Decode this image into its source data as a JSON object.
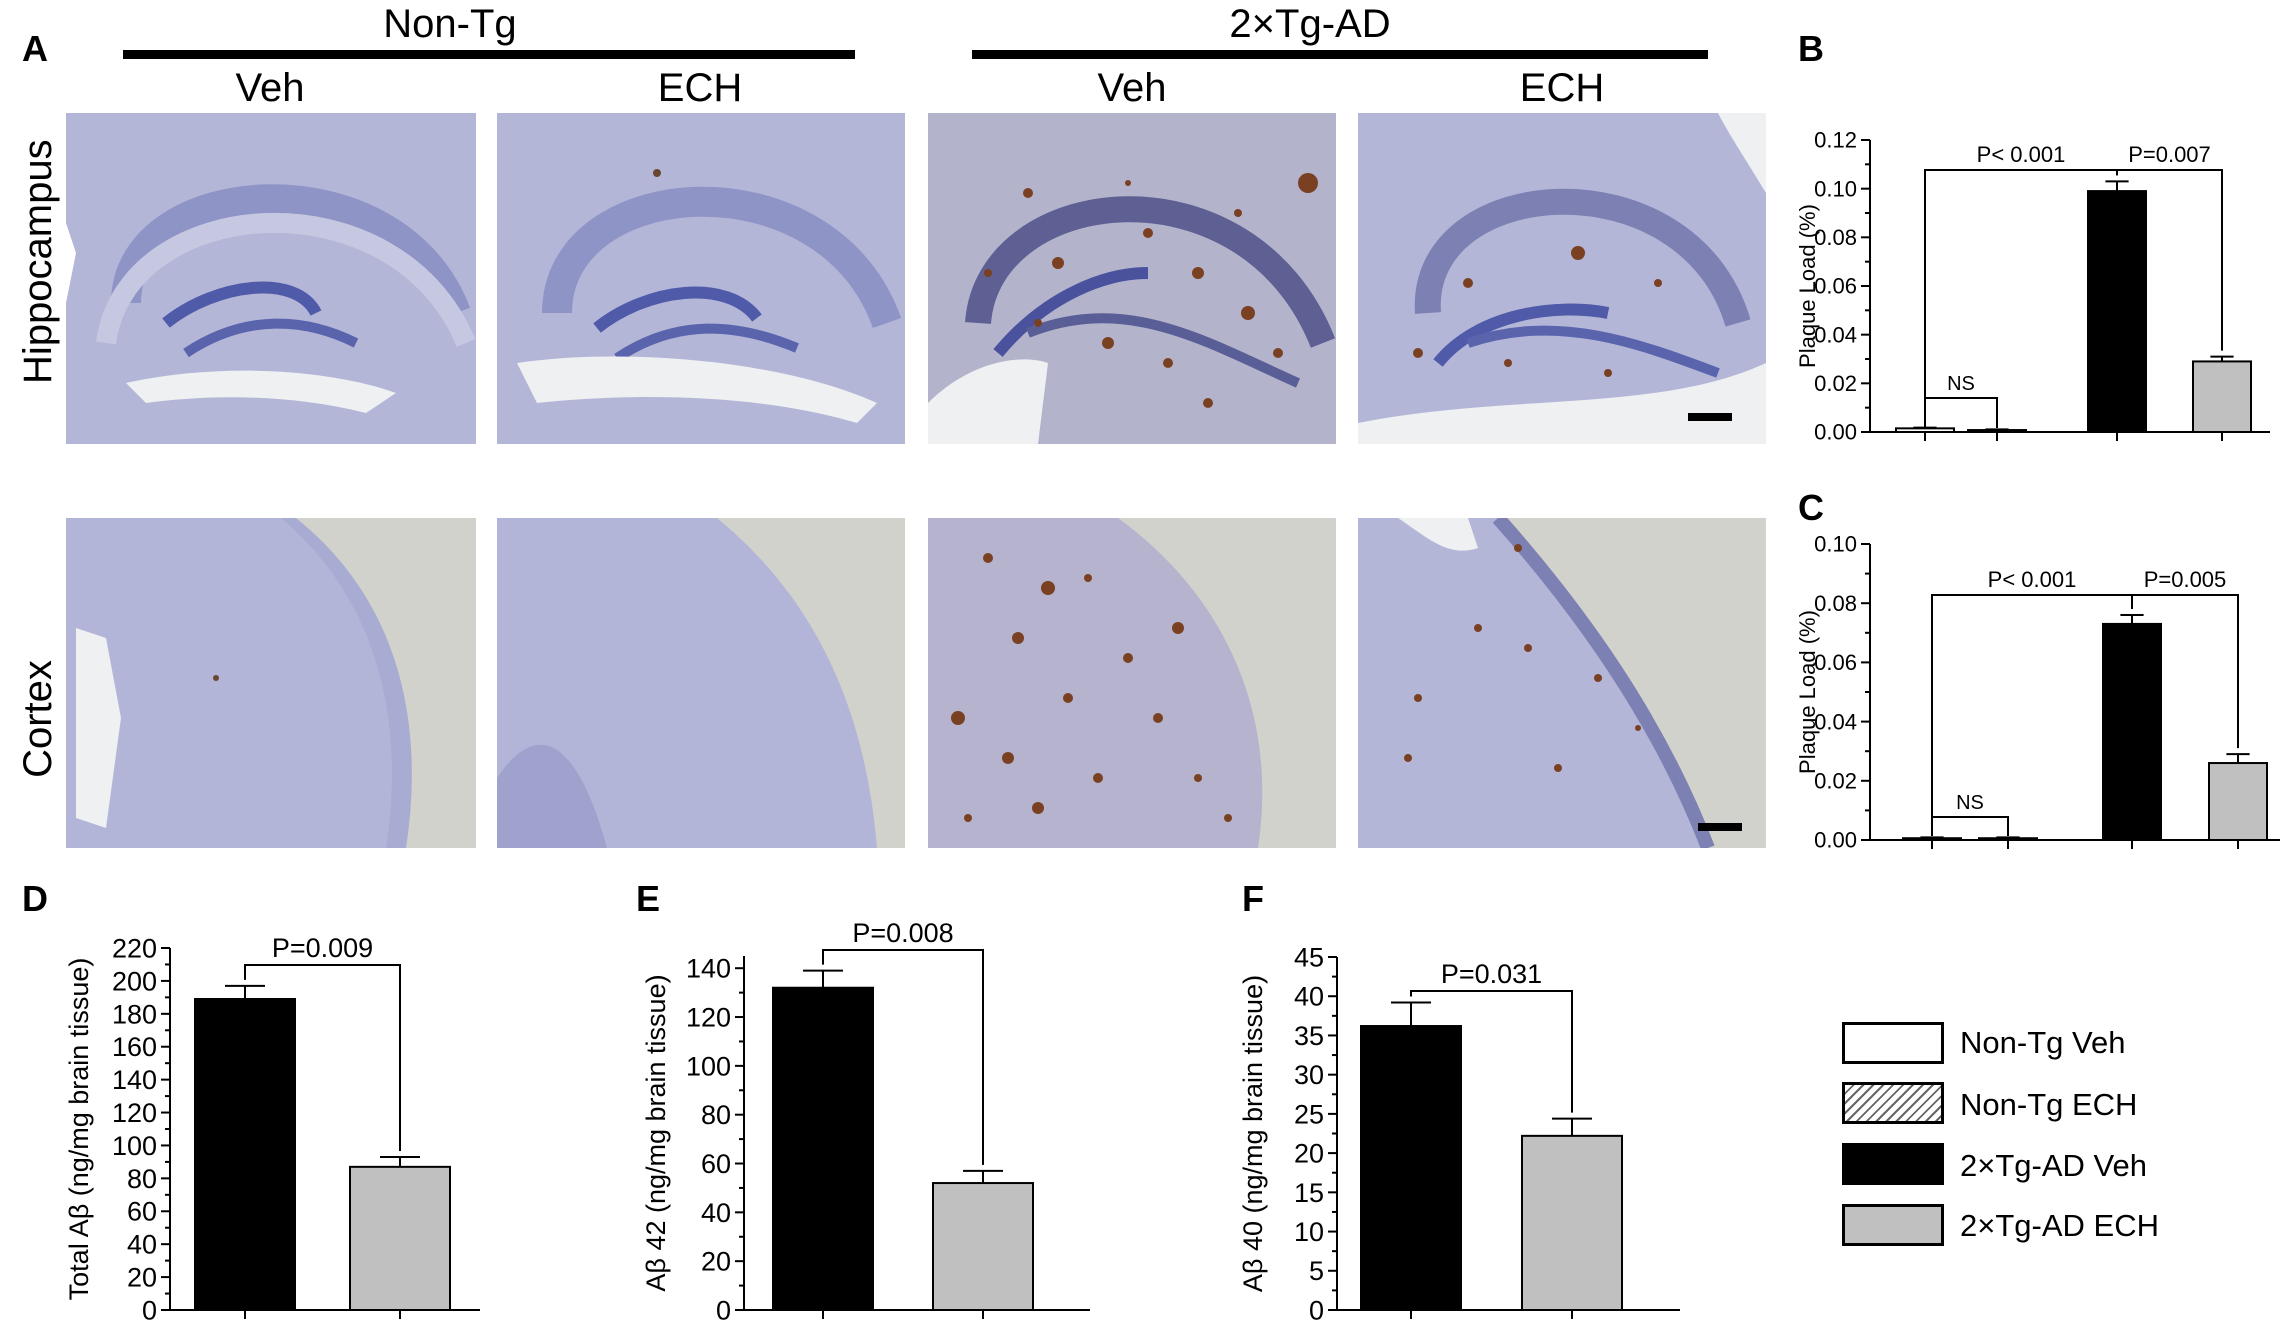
{
  "panel_a": {
    "letter": "A",
    "groups": [
      "Non-Tg",
      "2×Tg-AD"
    ],
    "columns": [
      "Veh",
      "ECH",
      "Veh",
      "ECH"
    ],
    "rows": [
      "Hippocampus",
      "Cortex"
    ]
  },
  "colors": {
    "tissue": "#b4b6d8",
    "tissue_dark": "#6f78b8",
    "background_slide": "#d2d2cc",
    "plaque": "#7a4022",
    "bar_black": "#000000",
    "bar_gray": "#c0c0c0",
    "bar_white": "#ffffff"
  },
  "legend": {
    "items": [
      {
        "label": "Non-Tg Veh",
        "fill": "white"
      },
      {
        "label": "Non-Tg ECH",
        "fill": "hatched"
      },
      {
        "label": "2×Tg-AD Veh",
        "fill": "black"
      },
      {
        "label": "2×Tg-AD ECH",
        "fill": "gray"
      }
    ]
  },
  "chart_data": [
    {
      "panel": "B",
      "type": "bar",
      "categories": [
        "Non-Tg Veh",
        "Non-Tg ECH",
        "2×Tg-AD Veh",
        "2×Tg-AD ECH"
      ],
      "values": [
        0.0015,
        0.0008,
        0.099,
        0.029
      ],
      "errors": [
        0.0003,
        0.0003,
        0.004,
        0.002
      ],
      "ylabel": "Plaque Load (%)",
      "ylim": [
        0,
        0.12
      ],
      "yticks": [
        "0.00",
        "0.02",
        "0.04",
        "0.06",
        "0.08",
        "0.10",
        "0.12"
      ],
      "annotations": [
        {
          "text": "NS",
          "from": 0,
          "to": 1
        },
        {
          "text": "P< 0.001",
          "from": 0,
          "to": 2
        },
        {
          "text": "P=0.007",
          "from": 2,
          "to": 3
        }
      ]
    },
    {
      "panel": "C",
      "type": "bar",
      "categories": [
        "Non-Tg Veh",
        "Non-Tg ECH",
        "2×Tg-AD Veh",
        "2×Tg-AD ECH"
      ],
      "values": [
        0.0006,
        0.0006,
        0.073,
        0.026
      ],
      "errors": [
        0.0003,
        0.0003,
        0.003,
        0.003
      ],
      "ylabel": "Plaque Load (%)",
      "ylim": [
        0,
        0.1
      ],
      "yticks": [
        "0.00",
        "0.02",
        "0.04",
        "0.06",
        "0.08",
        "0.10"
      ],
      "annotations": [
        {
          "text": "NS",
          "from": 0,
          "to": 1
        },
        {
          "text": "P< 0.001",
          "from": 0,
          "to": 2
        },
        {
          "text": "P=0.005",
          "from": 2,
          "to": 3
        }
      ]
    },
    {
      "panel": "D",
      "type": "bar",
      "categories": [
        "2×Tg-AD Veh",
        "2×Tg-AD ECH"
      ],
      "values": [
        189,
        87
      ],
      "errors": [
        8,
        6
      ],
      "ylabel": "Total Aβ  (ng/mg brain tissue)",
      "ylim": [
        0,
        220
      ],
      "yticks": [
        "0",
        "20",
        "40",
        "60",
        "80",
        "100",
        "120",
        "140",
        "160",
        "180",
        "200",
        "220"
      ],
      "annotations": [
        {
          "text": "P=0.009",
          "from": 0,
          "to": 1
        }
      ]
    },
    {
      "panel": "E",
      "type": "bar",
      "categories": [
        "2×Tg-AD Veh",
        "2×Tg-AD ECH"
      ],
      "values": [
        132,
        52
      ],
      "errors": [
        7,
        5
      ],
      "ylabel": "Aβ 42 (ng/mg brain tissue)",
      "ylim": [
        0,
        145
      ],
      "yticks": [
        "0",
        "20",
        "40",
        "60",
        "80",
        "100",
        "120",
        "140"
      ],
      "annotations": [
        {
          "text": "P=0.008",
          "from": 0,
          "to": 1
        }
      ]
    },
    {
      "panel": "F",
      "type": "bar",
      "categories": [
        "2×Tg-AD Veh",
        "2×Tg-AD ECH"
      ],
      "values": [
        36.2,
        22.2
      ],
      "errors": [
        3.0,
        2.2
      ],
      "ylabel": "Aβ 40 (ng/mg brain tissue)",
      "ylim": [
        0,
        45
      ],
      "yticks": [
        "0",
        "5",
        "10",
        "15",
        "20",
        "25",
        "30",
        "35",
        "40",
        "45"
      ],
      "annotations": [
        {
          "text": "P=0.031",
          "from": 0,
          "to": 1
        }
      ]
    }
  ]
}
